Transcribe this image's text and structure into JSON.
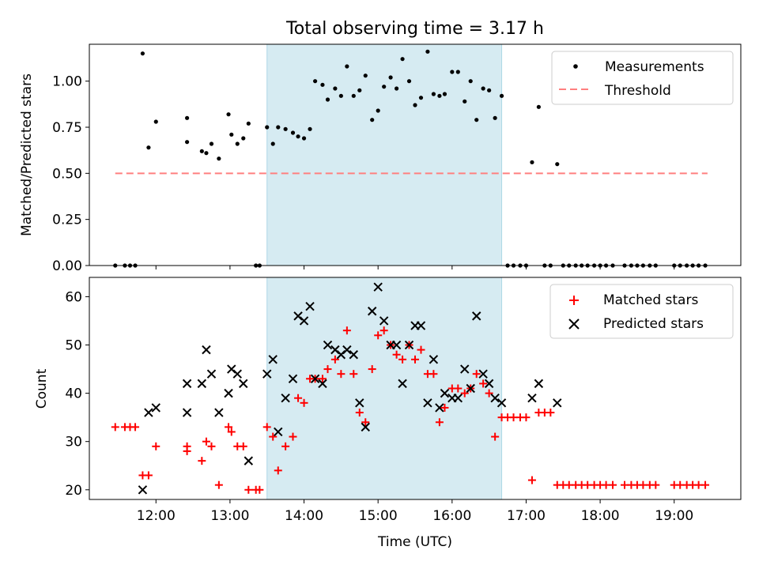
{
  "chart_data": [
    {
      "type": "scatter",
      "title": "Total observing time = 3.17 h",
      "xlabel": "",
      "ylabel": "Matched/Predicted stars",
      "x_units": "hours UTC",
      "xlim": [
        11.1,
        19.9
      ],
      "ylim": [
        0.0,
        1.2
      ],
      "y_ticks": [
        "0.00",
        "0.25",
        "0.50",
        "0.75",
        "1.00"
      ],
      "shaded_interval": [
        13.5,
        16.67
      ],
      "legend": {
        "placement": "top-right",
        "entries": [
          "Measurements",
          "Threshold"
        ]
      },
      "threshold": {
        "name": "Threshold",
        "value": 0.5,
        "x_range": [
          11.45,
          19.45
        ],
        "color": "#ff7f7f",
        "style": "dashed"
      },
      "series": [
        {
          "name": "Measurements",
          "marker": "dot",
          "color": "#000000",
          "x": [
            11.45,
            11.58,
            11.65,
            11.72,
            11.82,
            11.9,
            12.0,
            12.42,
            12.42,
            12.62,
            12.68,
            12.75,
            12.85,
            12.98,
            13.02,
            13.1,
            13.18,
            13.25,
            13.35,
            13.4,
            13.5,
            13.58,
            13.65,
            13.75,
            13.85,
            13.92,
            14.0,
            14.08,
            14.15,
            14.25,
            14.32,
            14.42,
            14.5,
            14.58,
            14.67,
            14.75,
            14.83,
            14.92,
            15.0,
            15.08,
            15.17,
            15.25,
            15.33,
            15.42,
            15.5,
            15.58,
            15.67,
            15.75,
            15.83,
            15.9,
            16.0,
            16.08,
            16.17,
            16.25,
            16.33,
            16.42,
            16.5,
            16.58,
            16.67,
            16.75,
            16.83,
            16.92,
            17.0,
            17.08,
            17.17,
            17.25,
            17.33,
            17.42,
            17.5,
            17.58,
            17.67,
            17.75,
            17.83,
            17.92,
            18.0,
            18.08,
            18.17,
            18.33,
            18.42,
            18.5,
            18.58,
            18.67,
            18.75,
            19.0,
            19.08,
            19.17,
            19.25,
            19.33,
            19.42
          ],
          "y": [
            0.0,
            0.0,
            0.0,
            0.0,
            1.15,
            0.64,
            0.78,
            0.8,
            0.67,
            0.62,
            0.61,
            0.66,
            0.58,
            0.82,
            0.71,
            0.66,
            0.69,
            0.77,
            0.0,
            0.0,
            0.75,
            0.66,
            0.75,
            0.74,
            0.72,
            0.7,
            0.69,
            0.74,
            1.0,
            0.98,
            0.9,
            0.96,
            0.92,
            1.08,
            0.92,
            0.95,
            1.03,
            0.79,
            0.84,
            0.97,
            1.02,
            0.96,
            1.12,
            1.0,
            0.87,
            0.91,
            1.16,
            0.93,
            0.92,
            0.93,
            1.05,
            1.05,
            0.89,
            1.0,
            0.79,
            0.96,
            0.95,
            0.8,
            0.92,
            0.0,
            0.0,
            0.0,
            0.0,
            0.56,
            0.86,
            0.0,
            0.0,
            0.55,
            0.0,
            0.0,
            0.0,
            0.0,
            0.0,
            0.0,
            0.0,
            0.0,
            0.0,
            0.0,
            0.0,
            0.0,
            0.0,
            0.0,
            0.0,
            0.0,
            0.0,
            0.0,
            0.0,
            0.0,
            0.0
          ]
        }
      ]
    },
    {
      "type": "scatter",
      "title": "",
      "xlabel": "Time (UTC)",
      "ylabel": "Count",
      "x_units": "hours UTC",
      "xlim": [
        11.1,
        19.9
      ],
      "ylim": [
        18,
        64
      ],
      "y_ticks": [
        "20",
        "30",
        "40",
        "50",
        "60"
      ],
      "x_ticks": [
        "12:00",
        "13:00",
        "14:00",
        "15:00",
        "16:00",
        "17:00",
        "18:00",
        "19:00"
      ],
      "shaded_interval": [
        13.5,
        16.67
      ],
      "legend": {
        "placement": "top-right",
        "entries": [
          "Matched stars",
          "Predicted stars"
        ]
      },
      "series": [
        {
          "name": "Matched stars",
          "marker": "plus",
          "color": "#ff0000",
          "x": [
            11.45,
            11.58,
            11.65,
            11.72,
            11.82,
            11.9,
            12.0,
            12.42,
            12.42,
            12.62,
            12.68,
            12.75,
            12.85,
            12.98,
            13.02,
            13.1,
            13.18,
            13.25,
            13.35,
            13.4,
            13.5,
            13.58,
            13.65,
            13.75,
            13.85,
            13.92,
            14.0,
            14.08,
            14.15,
            14.25,
            14.32,
            14.42,
            14.5,
            14.58,
            14.67,
            14.75,
            14.83,
            14.92,
            15.0,
            15.08,
            15.17,
            15.25,
            15.33,
            15.42,
            15.5,
            15.58,
            15.67,
            15.75,
            15.83,
            15.9,
            16.0,
            16.08,
            16.17,
            16.25,
            16.33,
            16.42,
            16.5,
            16.58,
            16.67,
            16.75,
            16.83,
            16.92,
            17.0,
            17.08,
            17.17,
            17.25,
            17.33,
            17.42,
            17.5,
            17.58,
            17.67,
            17.75,
            17.83,
            17.92,
            18.0,
            18.08,
            18.17,
            18.33,
            18.42,
            18.5,
            18.58,
            18.67,
            18.75,
            19.0,
            19.08,
            19.17,
            19.25,
            19.33,
            19.42
          ],
          "y": [
            33,
            33,
            33,
            33,
            23,
            23,
            29,
            28,
            29,
            26,
            30,
            29,
            21,
            33,
            32,
            29,
            29,
            20,
            20,
            20,
            33,
            31,
            24,
            29,
            31,
            39,
            38,
            43,
            43,
            43,
            45,
            47,
            44,
            53,
            44,
            36,
            34,
            45,
            52,
            53,
            50,
            48,
            47,
            50,
            47,
            49,
            44,
            44,
            34,
            37,
            41,
            41,
            40,
            41,
            44,
            42,
            40,
            31,
            35,
            35,
            35,
            35,
            35,
            22,
            36,
            36,
            36,
            21,
            21,
            21,
            21,
            21,
            21,
            21,
            21,
            21,
            21,
            21,
            21,
            21,
            21,
            21,
            21,
            21,
            21,
            21,
            21,
            21,
            21
          ]
        },
        {
          "name": "Predicted stars",
          "marker": "x",
          "color": "#000000",
          "x": [
            11.82,
            11.9,
            12.0,
            12.42,
            12.42,
            12.62,
            12.68,
            12.75,
            12.85,
            12.98,
            13.02,
            13.1,
            13.18,
            13.25,
            13.5,
            13.58,
            13.65,
            13.75,
            13.85,
            13.92,
            14.0,
            14.08,
            14.15,
            14.25,
            14.32,
            14.42,
            14.5,
            14.58,
            14.67,
            14.75,
            14.83,
            14.92,
            15.0,
            15.08,
            15.17,
            15.25,
            15.33,
            15.42,
            15.5,
            15.58,
            15.67,
            15.75,
            15.83,
            15.9,
            16.0,
            16.08,
            16.17,
            16.25,
            16.33,
            16.42,
            16.5,
            16.58,
            16.67,
            17.08,
            17.17,
            17.42
          ],
          "y": [
            20,
            36,
            37,
            42,
            36,
            42,
            49,
            44,
            36,
            40,
            45,
            44,
            42,
            26,
            44,
            47,
            32,
            39,
            43,
            56,
            55,
            58,
            43,
            42,
            50,
            49,
            48,
            49,
            48,
            38,
            33,
            57,
            62,
            55,
            50,
            50,
            42,
            50,
            54,
            54,
            38,
            47,
            37,
            40,
            39,
            39,
            45,
            41,
            56,
            44,
            42,
            39,
            38,
            39,
            42,
            38
          ]
        }
      ]
    }
  ]
}
